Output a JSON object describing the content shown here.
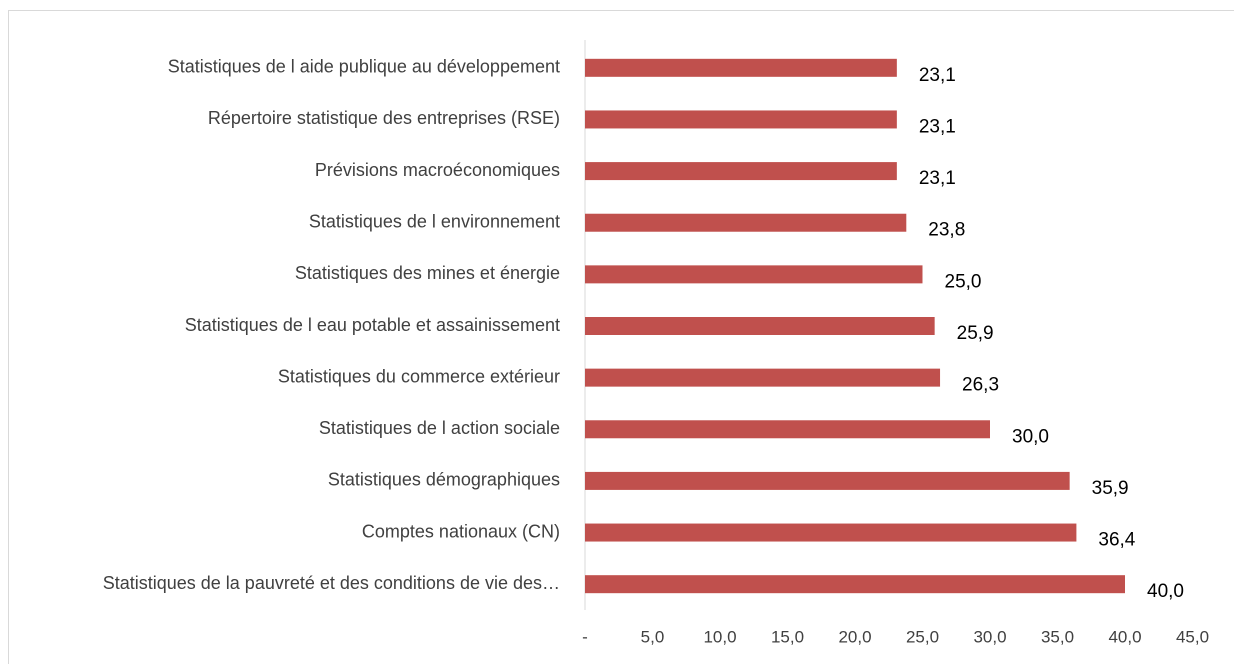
{
  "chart_data": {
    "type": "bar",
    "orientation": "horizontal",
    "categories": [
      "Statistiques de l aide publique au développement",
      "Répertoire statistique des entreprises (RSE)",
      "Prévisions macroéconomiques",
      "Statistiques de l environnement",
      "Statistiques des mines et énergie",
      "Statistiques de l eau potable et assainissement",
      "Statistiques du commerce extérieur",
      "Statistiques de l action sociale",
      "Statistiques démographiques",
      "Comptes nationaux (CN)",
      "Statistiques de la pauvreté et des conditions de vie des…"
    ],
    "values": [
      23.1,
      23.1,
      23.1,
      23.8,
      25.0,
      25.9,
      26.3,
      30.0,
      35.9,
      36.4,
      40.0
    ],
    "value_labels": [
      "23,1",
      "23,1",
      "23,1",
      "23,8",
      "25,0",
      "25,9",
      "26,3",
      "30,0",
      "35,9",
      "36,4",
      "40,0"
    ],
    "color": "#c0504d",
    "xlim": [
      0,
      45
    ],
    "xticks": [
      {
        "value": 0,
        "label": "-"
      },
      {
        "value": 5,
        "label": "5,0"
      },
      {
        "value": 10,
        "label": "10,0"
      },
      {
        "value": 15,
        "label": "15,0"
      },
      {
        "value": 20,
        "label": "20,0"
      },
      {
        "value": 25,
        "label": "25,0"
      },
      {
        "value": 30,
        "label": "30,0"
      },
      {
        "value": 35,
        "label": "35,0"
      },
      {
        "value": 40,
        "label": "40,0"
      },
      {
        "value": 45,
        "label": "45,0"
      }
    ],
    "grid": false
  }
}
